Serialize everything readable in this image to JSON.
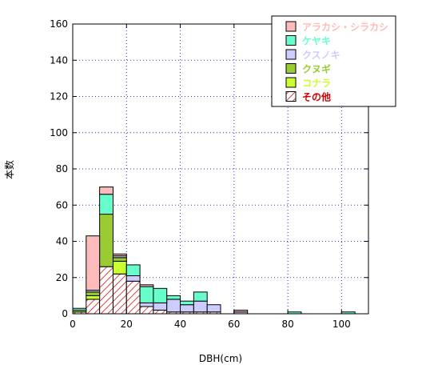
{
  "chart_data": {
    "type": "bar",
    "stacked": true,
    "xlabel": "DBH(cm)",
    "ylabel": "本数",
    "xlim": [
      0,
      110
    ],
    "ylim": [
      0,
      160
    ],
    "x_ticks": [
      0,
      20,
      40,
      60,
      80,
      100
    ],
    "y_ticks": [
      0,
      20,
      40,
      60,
      80,
      100,
      120,
      140,
      160
    ],
    "grid": true,
    "legend_position": "top-right",
    "bin_width": 5,
    "bin_starts": [
      0,
      5,
      10,
      15,
      20,
      25,
      30,
      35,
      40,
      45,
      50,
      55,
      60,
      65,
      70,
      75,
      80,
      85,
      90,
      95,
      100,
      105
    ],
    "series": [
      {
        "name": "その他",
        "color": "#cc0000",
        "values": [
          1,
          8,
          26,
          22,
          18,
          4,
          2,
          1,
          1,
          1,
          1,
          0,
          0,
          0,
          0,
          0,
          0,
          0,
          0,
          0,
          0,
          0
        ]
      },
      {
        "name": "コナラ",
        "color": "#ccff33",
        "values": [
          0,
          2,
          0,
          7,
          0,
          0,
          0,
          0,
          0,
          0,
          0,
          0,
          0,
          0,
          0,
          0,
          0,
          0,
          0,
          0,
          0,
          0
        ]
      },
      {
        "name": "クヌギ",
        "color": "#99cc33",
        "values": [
          1,
          2,
          29,
          2,
          0,
          0,
          0,
          0,
          0,
          0,
          0,
          0,
          0,
          0,
          0,
          0,
          0,
          0,
          0,
          0,
          0,
          0
        ]
      },
      {
        "name": "クスノキ",
        "color": "#ccccff",
        "values": [
          0,
          1,
          0,
          1,
          3,
          2,
          4,
          7,
          4,
          6,
          4,
          0,
          1,
          0,
          0,
          0,
          0,
          0,
          0,
          0,
          0,
          0
        ]
      },
      {
        "name": "ケヤキ",
        "color": "#66ffcc",
        "values": [
          1,
          0,
          11,
          0,
          6,
          9,
          8,
          2,
          2,
          5,
          0,
          0,
          0,
          0,
          0,
          0,
          1,
          0,
          0,
          0,
          1,
          0
        ]
      },
      {
        "name": "アラカシ・シラカシ",
        "color": "#ffbbbb",
        "values": [
          0,
          30,
          4,
          1,
          0,
          1,
          0,
          0,
          0,
          0,
          0,
          0,
          1,
          0,
          0,
          0,
          0,
          0,
          0,
          0,
          0,
          0
        ]
      }
    ],
    "legend_order": [
      "アラカシ・シラカシ",
      "ケヤキ",
      "クスノキ",
      "クヌギ",
      "コナラ",
      "その他"
    ],
    "legend_colors": {
      "アラカシ・シラカシ": "#ffbbbb",
      "ケヤキ": "#66ffcc",
      "クスノキ": "#ccccff",
      "クヌギ": "#99cc33",
      "コナラ": "#ccff33",
      "その他": "#cc0000"
    }
  }
}
